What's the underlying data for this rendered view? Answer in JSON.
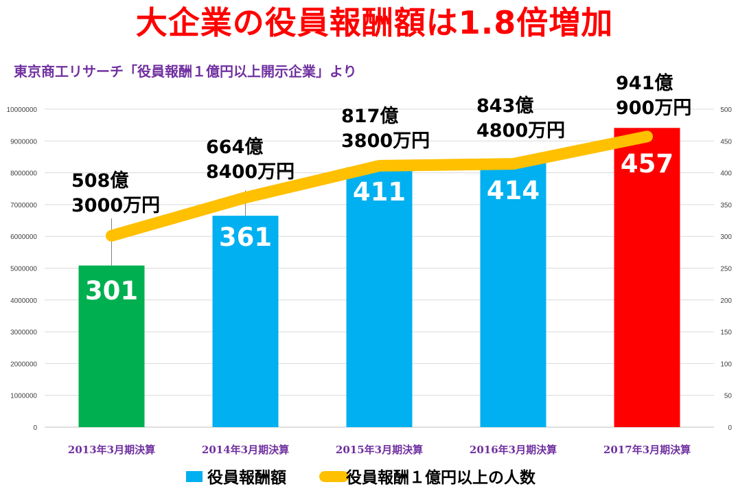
{
  "header": {
    "title": "大企業の役員報酬額は1.8倍増加",
    "subtitle": "東京商工リサーチ「役員報酬１億円以上開示企業」より"
  },
  "chart_data": {
    "type": "bar",
    "categories": [
      "2013年3月期決算",
      "2014年3月期決算",
      "2015年3月期決算",
      "2016年3月期決算",
      "2017年3月期決算"
    ],
    "series": [
      {
        "name": "役員報酬額",
        "type": "bar",
        "axis": "left",
        "values": [
          5083000,
          6648400,
          8173800,
          8434800,
          9410900
        ],
        "data_labels": [
          "508億\n3000万円",
          "664億\n8400万円",
          "817億\n3800万円",
          "843億\n4800万円",
          "941億\n900万円"
        ],
        "colors": [
          "#00b050",
          "#00b0f0",
          "#00b0f0",
          "#00b0f0",
          "#ff0000"
        ]
      },
      {
        "name": "役員報酬１億円以上の人数",
        "type": "line",
        "axis": "right",
        "values": [
          301,
          361,
          411,
          414,
          457
        ],
        "data_labels": [
          "301",
          "361",
          "411",
          "414",
          "457"
        ],
        "color": "#ffc000"
      }
    ],
    "y_left": {
      "min": 0,
      "max": 10000000,
      "ticks": [
        "0",
        "1000000",
        "2000000",
        "3000000",
        "4000000",
        "5000000",
        "6000000",
        "7000000",
        "8000000",
        "9000000",
        "10000000"
      ]
    },
    "y_right": {
      "min": 0,
      "max": 500,
      "ticks": [
        "0",
        "50",
        "100",
        "150",
        "200",
        "250",
        "300",
        "350",
        "400",
        "450",
        "500"
      ]
    },
    "grid": true,
    "legend_position": "bottom"
  }
}
